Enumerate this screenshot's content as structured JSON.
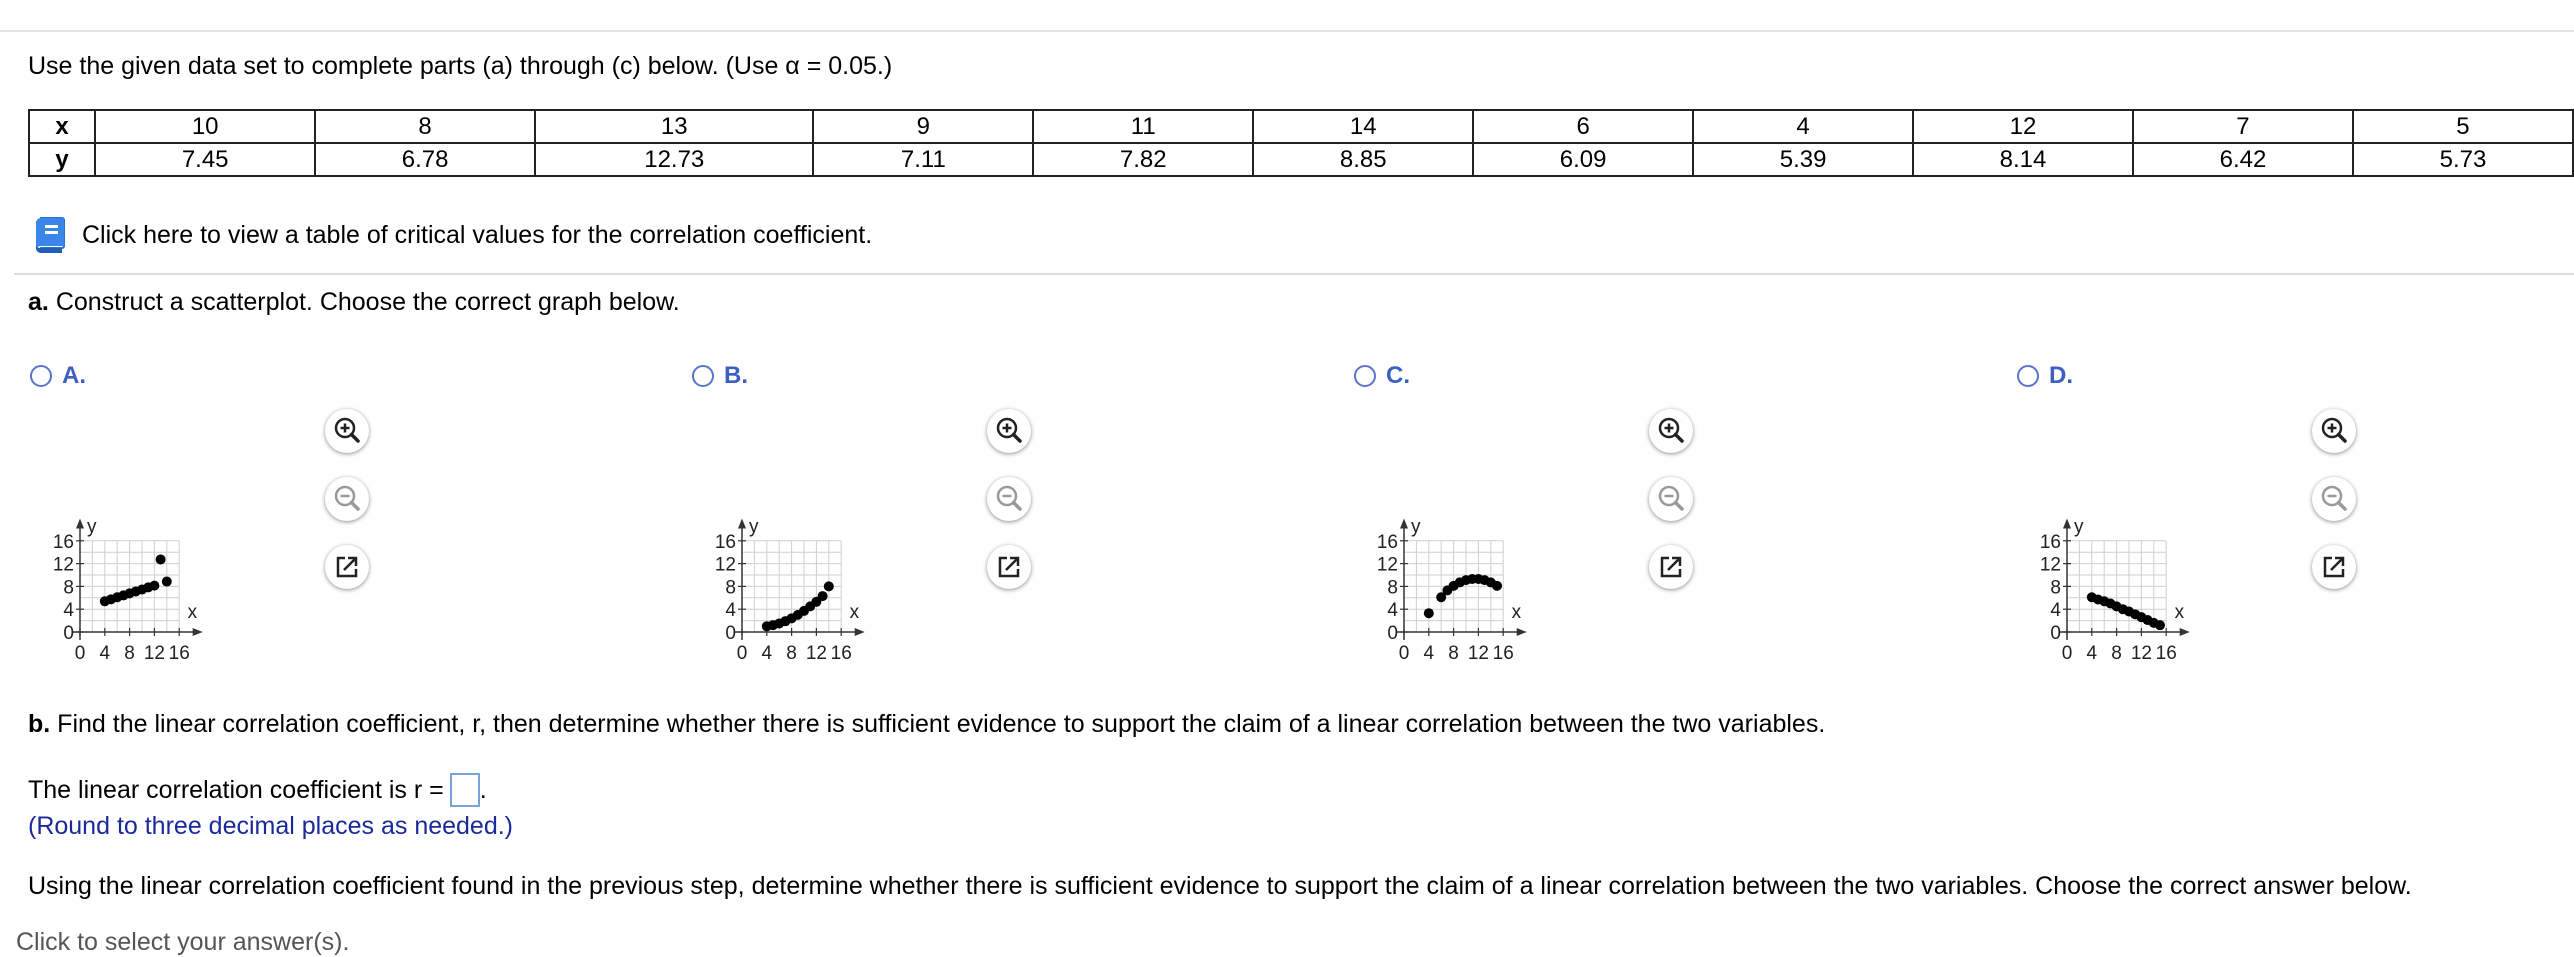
{
  "instructions": "Use the given data set to complete parts (a) through (c) below. (Use α = 0.05.)",
  "data_table": {
    "x_label": "x",
    "y_label": "y",
    "x": [
      "10",
      "8",
      "13",
      "9",
      "11",
      "14",
      "6",
      "4",
      "12",
      "7",
      "5"
    ],
    "y": [
      "7.45",
      "6.78",
      "12.73",
      "7.11",
      "7.82",
      "8.85",
      "6.09",
      "5.39",
      "8.14",
      "6.42",
      "5.73"
    ]
  },
  "critical_values_link": "Click here to view a table of critical values for the correlation coefficient.",
  "part_a": {
    "label": "a.",
    "text": "Construct a scatterplot. Choose the correct graph below."
  },
  "options": [
    {
      "letter": "A.",
      "points": [
        [
          4,
          5.39
        ],
        [
          5,
          5.73
        ],
        [
          6,
          6.09
        ],
        [
          7,
          6.42
        ],
        [
          8,
          6.78
        ],
        [
          9,
          7.11
        ],
        [
          10,
          7.45
        ],
        [
          11,
          7.82
        ],
        [
          12,
          8.14
        ],
        [
          13,
          12.73
        ],
        [
          14,
          8.85
        ]
      ]
    },
    {
      "letter": "B.",
      "points": [
        [
          4,
          1
        ],
        [
          5,
          1.2
        ],
        [
          6,
          1.5
        ],
        [
          7,
          1.9
        ],
        [
          8,
          2.4
        ],
        [
          9,
          3.0
        ],
        [
          10,
          3.7
        ],
        [
          11,
          4.5
        ],
        [
          12,
          5.3
        ],
        [
          13,
          6.3
        ],
        [
          14,
          8.0
        ]
      ]
    },
    {
      "letter": "C.",
      "points": [
        [
          4,
          3.3
        ],
        [
          6,
          6.1
        ],
        [
          7,
          7.3
        ],
        [
          8,
          8.1
        ],
        [
          9,
          8.7
        ],
        [
          10,
          9.1
        ],
        [
          11,
          9.3
        ],
        [
          12,
          9.3
        ],
        [
          13,
          9.1
        ],
        [
          14,
          8.7
        ],
        [
          15,
          8.1
        ]
      ]
    },
    {
      "letter": "D.",
      "points": [
        [
          4,
          6.1
        ],
        [
          5,
          5.7
        ],
        [
          6,
          5.4
        ],
        [
          7,
          5.0
        ],
        [
          8,
          4.5
        ],
        [
          9,
          4.0
        ],
        [
          10,
          3.6
        ],
        [
          11,
          3.1
        ],
        [
          12,
          2.6
        ],
        [
          13,
          2.1
        ],
        [
          14,
          1.6
        ],
        [
          15,
          1.2
        ]
      ]
    }
  ],
  "graph_axes": {
    "x_label": "x",
    "y_label": "y",
    "x_ticks": [
      "0",
      "4",
      "8",
      "12",
      "16"
    ],
    "y_ticks": [
      "0",
      "4",
      "8",
      "12",
      "16"
    ]
  },
  "part_b": {
    "label": "b.",
    "text": "Find the linear correlation coefficient, r, then determine whether there is sufficient evidence to support the claim of a linear correlation between the two variables."
  },
  "r_prompt": "The linear correlation coefficient is r =",
  "r_value": "",
  "round_note": "(Round to three decimal places as needed.)",
  "using_text": "Using the linear correlation coefficient found in the previous step, determine whether there is sufficient evidence to support the claim of a linear correlation between the two variables. Choose the correct answer below.",
  "cut_text": "Click to select your answer(s).",
  "colors": {
    "accent": "#3d5fc4",
    "round_note": "#1a2a9a",
    "input_border": "#7aa2d6"
  },
  "icons": [
    "book-icon",
    "zoom-in-icon",
    "zoom-out-icon",
    "popout-icon"
  ]
}
